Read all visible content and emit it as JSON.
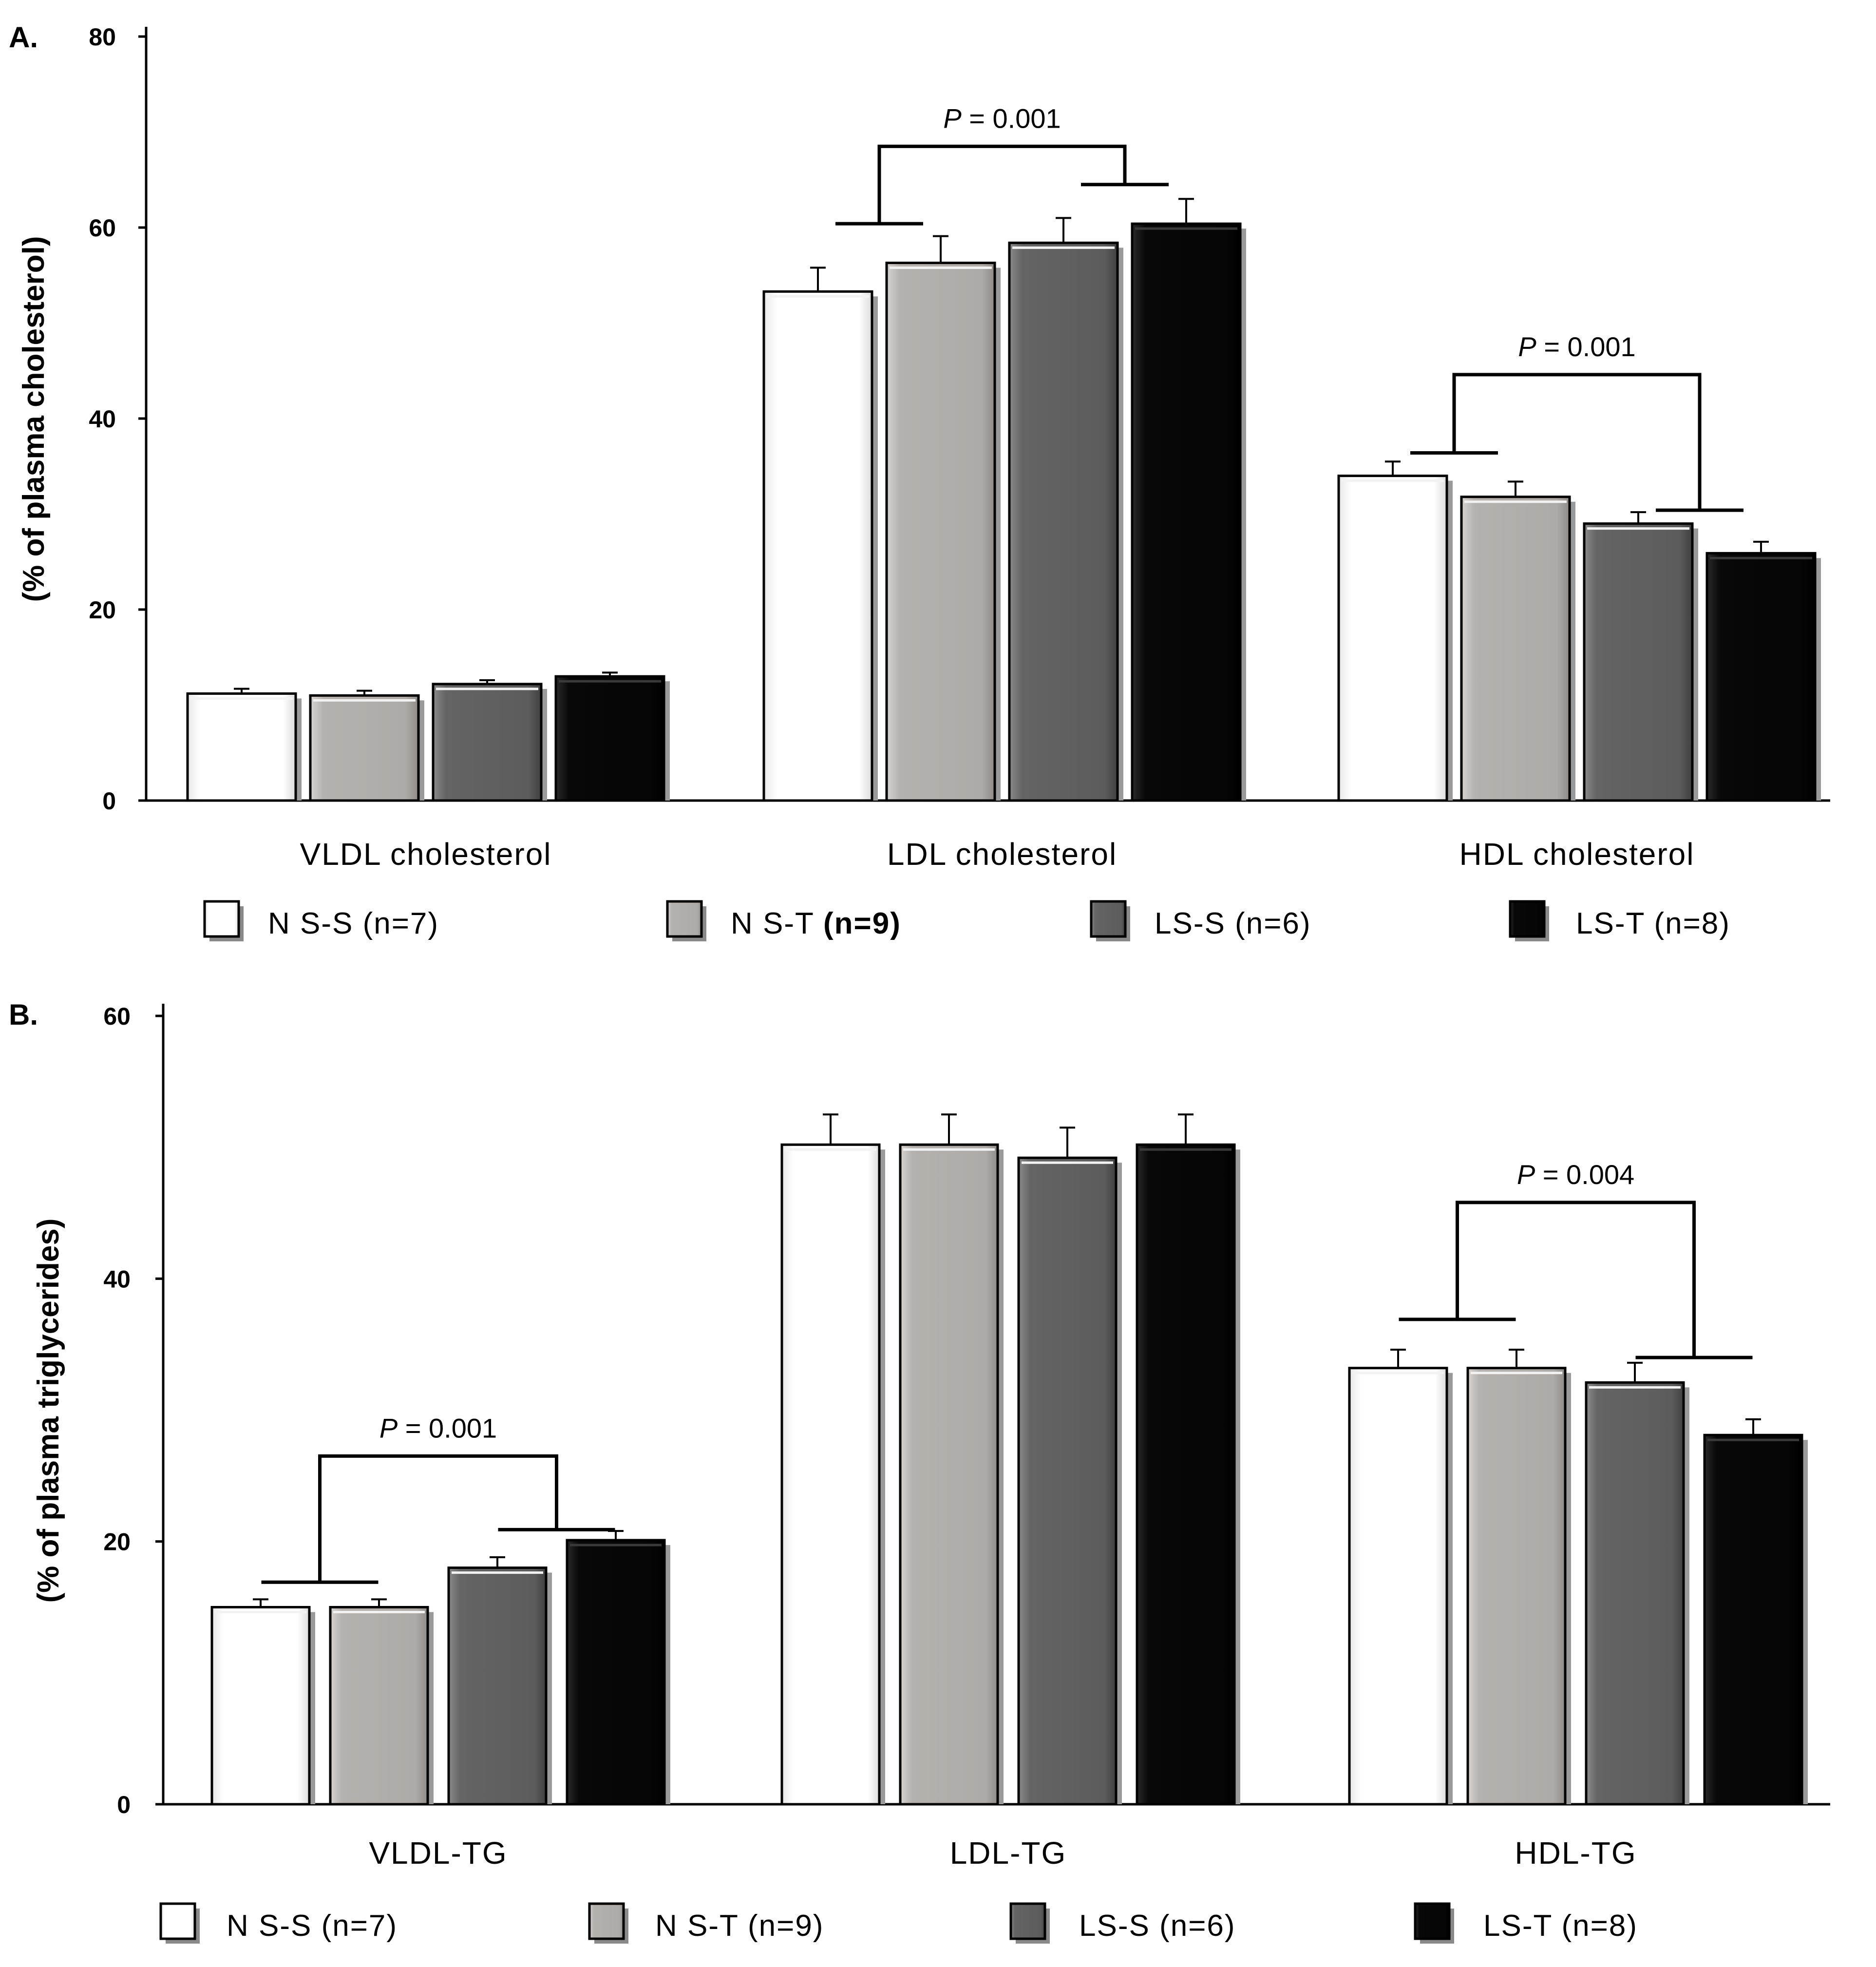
{
  "colors": {
    "NS-S": "#ffffff",
    "NS-T": "#b2aeab",
    "LS-S": "#606060",
    "LS-T": "#050505"
  },
  "chart_data": [
    {
      "id": "A",
      "panel_label": "A.",
      "type": "bar",
      "ylabel": "(% of plasma cholesterol)",
      "ylim": [
        0,
        80
      ],
      "yticks": [
        0,
        20,
        40,
        60,
        80
      ],
      "grid": false,
      "categories": [
        "VLDL cholesterol",
        "LDL cholesterol",
        "HDL cholesterol"
      ],
      "series": [
        {
          "name": "NS-S",
          "values": [
            11.2,
            53.3,
            34.0
          ],
          "errors": [
            0.5,
            2.5,
            1.5
          ]
        },
        {
          "name": "NS-T",
          "values": [
            11.0,
            56.3,
            31.8
          ],
          "errors": [
            0.5,
            2.8,
            1.6
          ]
        },
        {
          "name": "LS-S",
          "values": [
            12.2,
            58.4,
            29.0
          ],
          "errors": [
            0.4,
            2.6,
            1.2
          ]
        },
        {
          "name": "LS-T",
          "values": [
            13.0,
            60.4,
            25.9
          ],
          "errors": [
            0.4,
            2.6,
            1.2
          ]
        }
      ],
      "legend": [
        {
          "key": "NS-S",
          "text": "N S-S  (n=7)"
        },
        {
          "key": "NS-T",
          "text": "N S-T  ",
          "bold": "(n=9)"
        },
        {
          "key": "LS-S",
          "text": "LS-S (n=6)"
        },
        {
          "key": "LS-T",
          "text": "LS-T (n=8)"
        }
      ],
      "annotations": [
        {
          "category": 1,
          "p_label": "P",
          "p_value": " = 0.001",
          "left_y": 60.4,
          "right_y": 64.5,
          "top_y": 68.5
        },
        {
          "category": 2,
          "p_label": "P",
          "p_value": " = 0.001",
          "left_y": 36.4,
          "right_y": 30.4,
          "top_y": 44.6
        }
      ]
    },
    {
      "id": "B",
      "panel_label": "B.",
      "type": "bar",
      "ylabel": "(% of plasma triglycerides)",
      "ylim": [
        0,
        60
      ],
      "yticks": [
        0,
        20,
        40,
        60
      ],
      "grid": false,
      "categories": [
        "VLDL-TG",
        "LDL-TG",
        "HDL-TG"
      ],
      "series": [
        {
          "name": "NS-S",
          "values": [
            15.0,
            50.2,
            33.2
          ],
          "errors": [
            0.6,
            2.3,
            1.4
          ]
        },
        {
          "name": "NS-T",
          "values": [
            15.0,
            50.2,
            33.2
          ],
          "errors": [
            0.6,
            2.3,
            1.4
          ]
        },
        {
          "name": "LS-S",
          "values": [
            18.0,
            49.2,
            32.1
          ],
          "errors": [
            0.8,
            2.3,
            1.5
          ]
        },
        {
          "name": "LS-T",
          "values": [
            20.1,
            50.2,
            28.1
          ],
          "errors": [
            0.7,
            2.3,
            1.2
          ]
        }
      ],
      "legend": [
        {
          "key": "NS-S",
          "text": "N S-S  (n=7)"
        },
        {
          "key": "NS-T",
          "text": "N S-T  (n=9)"
        },
        {
          "key": "LS-S",
          "text": "LS-S (n=6)"
        },
        {
          "key": "LS-T",
          "text": "LS-T (n=8)"
        }
      ],
      "annotations": [
        {
          "category": 0,
          "p_label": "P",
          "p_value": " = 0.001",
          "left_y": 16.9,
          "right_y": 20.9,
          "top_y": 26.5
        },
        {
          "category": 2,
          "p_label": "P",
          "p_value": " = 0.004",
          "left_y": 36.9,
          "right_y": 34.0,
          "top_y": 45.8
        }
      ]
    }
  ]
}
